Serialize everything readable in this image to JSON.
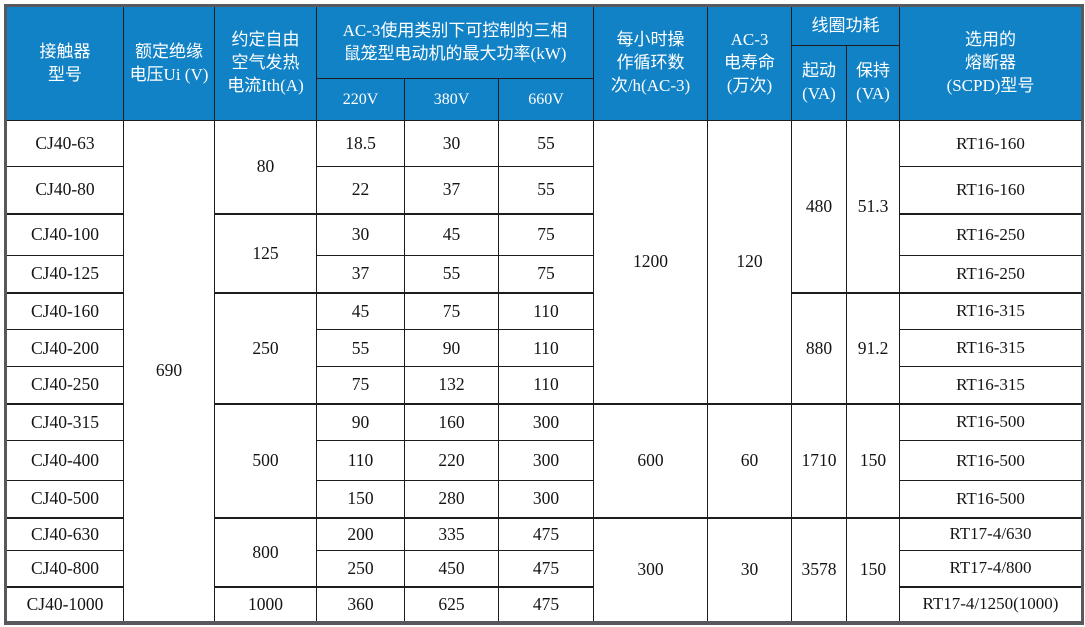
{
  "colors": {
    "header_bg": "#1182c6",
    "header_text": "#ffffff",
    "grid_border": "#1c1c1c",
    "outer_border": "#57595c",
    "body_bg": "#ffffff",
    "body_text": "#141414"
  },
  "table": {
    "header": {
      "contactor_model": "接触器\n型号",
      "rated_voltage": "额定绝缘\n电压Ui (V)",
      "thermal_current": "约定自由\n空气发热\n电流Ith(A)",
      "max_power_group": "AC-3使用类别下可控制的三相\n鼠笼型电动机的最大功率(kW)",
      "volt_220": "220V",
      "volt_380": "380V",
      "volt_660": "660V",
      "cycles_per_hour": "每小时操\n作循环数\n次/h(AC-3)",
      "electrical_life": "AC-3\n电寿命\n(万次)",
      "coil_power": "线圈功耗",
      "start_va": "起动\n(VA)",
      "hold_va": "保持\n(VA)",
      "fuse_model": "选用的\n熔断器\n(SCPD)型号"
    },
    "body": {
      "models": [
        "CJ40-63",
        "CJ40-80",
        "CJ40-100",
        "CJ40-125",
        "CJ40-160",
        "CJ40-200",
        "CJ40-250",
        "CJ40-315",
        "CJ40-400",
        "CJ40-500",
        "CJ40-630",
        "CJ40-800",
        "CJ40-1000"
      ],
      "ui": "690",
      "ith_groups": [
        {
          "value": "80",
          "rows": 2
        },
        {
          "value": "125",
          "rows": 2
        },
        {
          "value": "250",
          "rows": 3
        },
        {
          "value": "500",
          "rows": 3
        },
        {
          "value": "800",
          "rows": 2
        },
        {
          "value": "1000",
          "rows": 1
        }
      ],
      "p220": [
        "18.5",
        "22",
        "30",
        "37",
        "45",
        "55",
        "75",
        "90",
        "110",
        "150",
        "200",
        "250",
        "360"
      ],
      "p380": [
        "30",
        "37",
        "45",
        "55",
        "75",
        "90",
        "132",
        "160",
        "220",
        "280",
        "335",
        "450",
        "625"
      ],
      "p660": [
        "55",
        "55",
        "75",
        "75",
        "110",
        "110",
        "110",
        "300",
        "300",
        "300",
        "475",
        "475",
        "475"
      ],
      "cycles_groups": [
        {
          "value": "1200",
          "rows": 7
        },
        {
          "value": "600",
          "rows": 3
        },
        {
          "value": "300",
          "rows": 3
        }
      ],
      "life_groups": [
        {
          "value": "120",
          "rows": 7
        },
        {
          "value": "60",
          "rows": 3
        },
        {
          "value": "30",
          "rows": 3
        }
      ],
      "start_groups": [
        {
          "value": "480",
          "rows": 4
        },
        {
          "value": "880",
          "rows": 3
        },
        {
          "value": "1710",
          "rows": 3
        },
        {
          "value": "3578",
          "rows": 3
        }
      ],
      "hold_groups": [
        {
          "value": "51.3",
          "rows": 4
        },
        {
          "value": "91.2",
          "rows": 3
        },
        {
          "value": "150",
          "rows": 3
        },
        {
          "value": "150",
          "rows": 3
        }
      ],
      "fuses": [
        "RT16-160",
        "RT16-160",
        "RT16-250",
        "RT16-250",
        "RT16-315",
        "RT16-315",
        "RT16-315",
        "RT16-500",
        "RT16-500",
        "RT16-500",
        "RT17-4/630",
        "RT17-4/800",
        "RT17-4/1250(1000)"
      ]
    }
  }
}
